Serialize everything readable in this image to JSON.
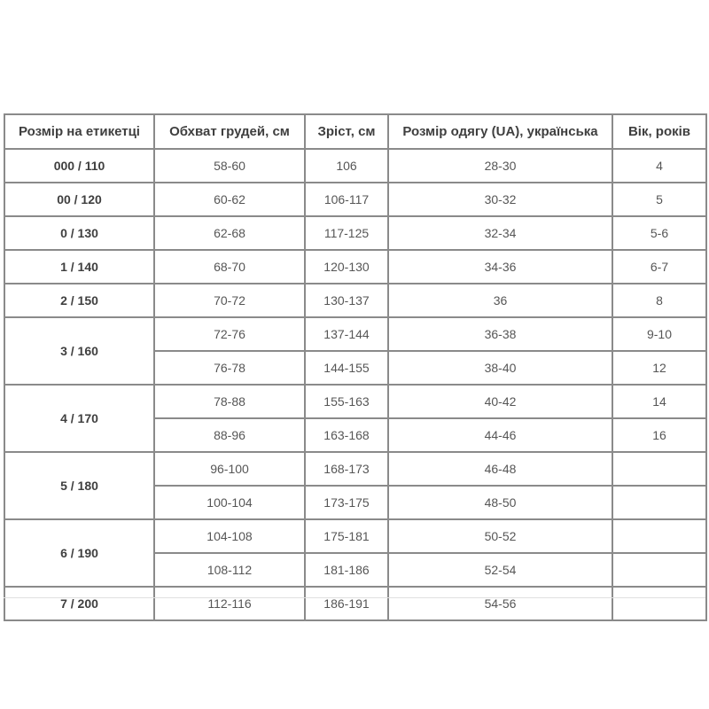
{
  "table": {
    "headers": [
      "Розмір на етикетці",
      "Обхват грудей, см",
      "Зріст, см",
      "Розмір одягу (UA), українська",
      "Вік, років"
    ],
    "rows": [
      {
        "size": "000 / 110",
        "rowspan": 1,
        "chest": "58-60",
        "height": "106",
        "ua": "28-30",
        "age": "4"
      },
      {
        "size": "00 / 120",
        "rowspan": 1,
        "chest": "60-62",
        "height": "106-117",
        "ua": "30-32",
        "age": "5"
      },
      {
        "size": "0 / 130",
        "rowspan": 1,
        "chest": "62-68",
        "height": "117-125",
        "ua": "32-34",
        "age": "5-6"
      },
      {
        "size": "1 / 140",
        "rowspan": 1,
        "chest": "68-70",
        "height": "120-130",
        "ua": "34-36",
        "age": "6-7"
      },
      {
        "size": "2 / 150",
        "rowspan": 1,
        "chest": "70-72",
        "height": "130-137",
        "ua": "36",
        "age": "8"
      },
      {
        "size": "3 / 160",
        "rowspan": 2,
        "chest": "72-76",
        "height": "137-144",
        "ua": "36-38",
        "age": "9-10"
      },
      {
        "size": null,
        "chest": "76-78",
        "height": "144-155",
        "ua": "38-40",
        "age": "12"
      },
      {
        "size": "4 / 170",
        "rowspan": 2,
        "chest": "78-88",
        "height": "155-163",
        "ua": "40-42",
        "age": "14"
      },
      {
        "size": null,
        "chest": "88-96",
        "height": "163-168",
        "ua": "44-46",
        "age": "16"
      },
      {
        "size": "5 / 180",
        "rowspan": 2,
        "chest": "96-100",
        "height": "168-173",
        "ua": "46-48",
        "age": ""
      },
      {
        "size": null,
        "chest": "100-104",
        "height": "173-175",
        "ua": "48-50",
        "age": ""
      },
      {
        "size": "6 / 190",
        "rowspan": 2,
        "chest": "104-108",
        "height": "175-181",
        "ua": "50-52",
        "age": ""
      },
      {
        "size": null,
        "chest": "108-112",
        "height": "181-186",
        "ua": "52-54",
        "age": ""
      },
      {
        "size": "7 / 200",
        "rowspan": 1,
        "chest": "112-116",
        "height": "186-191",
        "ua": "54-56",
        "age": ""
      }
    ]
  },
  "colors": {
    "border": "#8a8a8a",
    "header_text": "#3f3f3f",
    "cell_text": "#565656",
    "under_line": "#e0e0e0",
    "background": "#ffffff"
  }
}
